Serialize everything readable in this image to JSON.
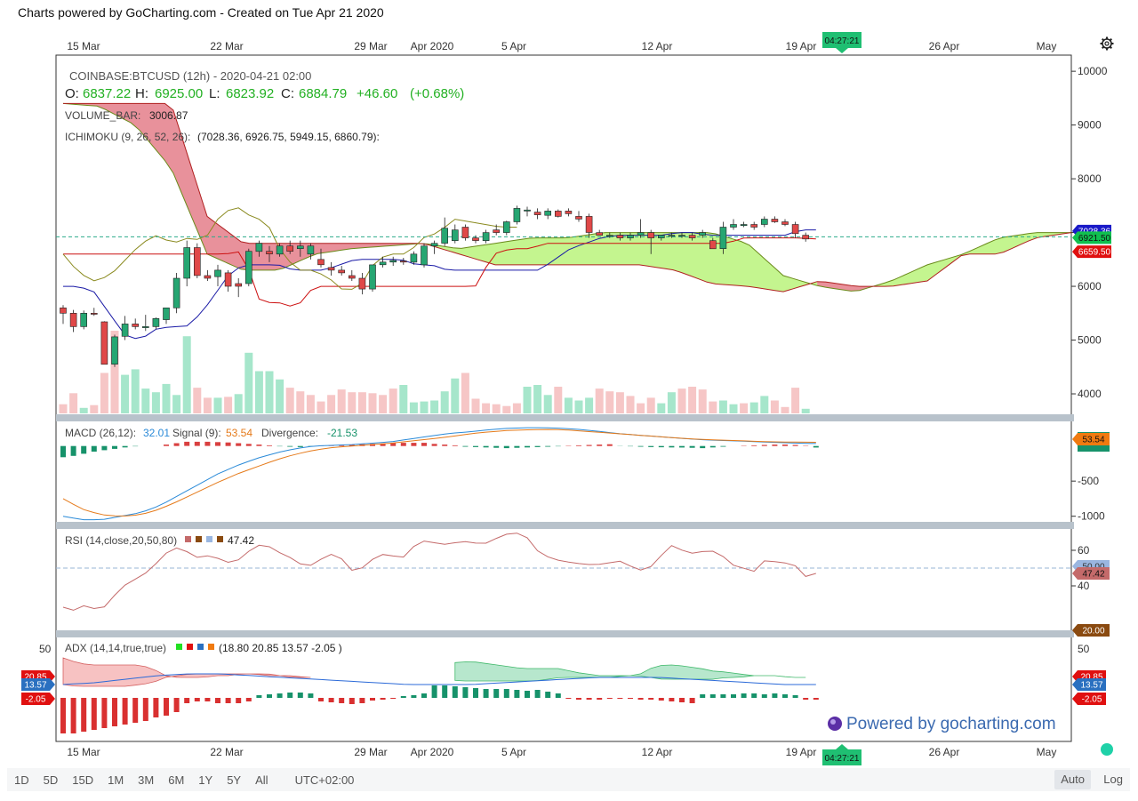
{
  "header": {
    "title": "Charts powered by GoCharting.com - Created on Tue Apr 21 2020"
  },
  "watermark": "Powered by gocharting.com",
  "time_badge": "04:27:21",
  "symbol_line": "COINBASE:BTCUSD (12h) - 2020-04-21 02:00",
  "ohlc": {
    "o_label": "O:",
    "o": "6837.22",
    "h_label": "H:",
    "h": "6925.00",
    "l_label": "L:",
    "l": "6823.92",
    "c_label": "C:",
    "c": "6884.79",
    "chg": "+46.60",
    "pct": "(+0.68%)"
  },
  "volume_label": "VOLUME_BAR:",
  "volume_value": "3006.87",
  "ichimoku_label": "ICHIMOKU (9, 26, 52, 26):",
  "ichimoku_values": "(7028.36, 6926.75, 5949.15, 6860.79):",
  "macd": {
    "label": "MACD (26,12):",
    "macd_value": "32.01",
    "signal_label": "Signal (9):",
    "signal_value": "53.54",
    "div_label": "Divergence:",
    "div_value": "-21.53"
  },
  "rsi": {
    "label": "RSI (14,close,20,50,80)",
    "value": "47.42"
  },
  "adx": {
    "label": "ADX (14,14,true,true)",
    "values": "(18.80 20.85 13.57 -2.05 )"
  },
  "bottom_bar": {
    "ranges": [
      "1D",
      "5D",
      "15D",
      "1M",
      "3M",
      "6M",
      "1Y",
      "5Y",
      "All"
    ],
    "timezone": "UTC+02:00",
    "auto": "Auto",
    "log": "Log"
  },
  "colors": {
    "up": "#26a672",
    "down": "#e04848",
    "cloud_bear": "#e8919b",
    "cloud_bull": "#c4f58f",
    "tenkan": "#1a1aa6",
    "kijun": "#cc1010"
  },
  "chart_data": [
    {
      "type": "candlestick",
      "title": "COINBASE:BTCUSD (12h)",
      "x_ticks": [
        "15 Mar",
        "22 Mar",
        "29 Mar",
        "Apr 2020",
        "5 Apr",
        "12 Apr",
        "19 Apr",
        "26 Apr",
        "May"
      ],
      "y_ticks": [
        10000,
        9000,
        8000,
        7000,
        6000,
        5000,
        4000
      ],
      "ylim": [
        3620,
        10300
      ],
      "price_labels": {
        "tenkan": "7028.36",
        "last": "6921.50",
        "kijun": "6659.50"
      },
      "candles": [
        [
          5600,
          5650,
          5300,
          5500
        ],
        [
          5500,
          5560,
          5150,
          5250
        ],
        [
          5250,
          5550,
          5200,
          5500
        ],
        [
          5500,
          5600,
          5450,
          5480
        ],
        [
          5340,
          5350,
          4600,
          4550
        ],
        [
          4550,
          5100,
          4500,
          5060
        ],
        [
          5070,
          5450,
          5000,
          5300
        ],
        [
          5300,
          5400,
          5200,
          5250
        ],
        [
          5230,
          5470,
          5170,
          5250
        ],
        [
          5250,
          5420,
          5200,
          5400
        ],
        [
          5380,
          5600,
          5300,
          5600
        ],
        [
          5600,
          6250,
          5500,
          6150
        ],
        [
          6150,
          6850,
          6000,
          6720
        ],
        [
          6720,
          6800,
          6150,
          6200
        ],
        [
          6200,
          6300,
          6100,
          6150
        ],
        [
          6180,
          6400,
          6000,
          6300
        ],
        [
          6250,
          6300,
          5900,
          6000
        ],
        [
          6050,
          6150,
          5800,
          6000
        ],
        [
          6050,
          6700,
          6000,
          6650
        ],
        [
          6650,
          6850,
          6550,
          6800
        ],
        [
          6650,
          6750,
          6450,
          6600
        ],
        [
          6600,
          6800,
          6550,
          6750
        ],
        [
          6750,
          6850,
          6600,
          6650
        ],
        [
          6700,
          6850,
          6550,
          6750
        ],
        [
          6600,
          6800,
          6500,
          6750
        ],
        [
          6500,
          6700,
          6350,
          6400
        ],
        [
          6350,
          6450,
          6200,
          6300
        ],
        [
          6300,
          6380,
          6200,
          6250
        ],
        [
          6200,
          6300,
          6100,
          6150
        ],
        [
          6150,
          6250,
          5850,
          5950
        ],
        [
          5950,
          6400,
          5900,
          6400
        ],
        [
          6400,
          6550,
          6350,
          6450
        ],
        [
          6450,
          6550,
          6380,
          6480
        ],
        [
          6470,
          6530,
          6400,
          6460
        ],
        [
          6450,
          6650,
          6400,
          6600
        ],
        [
          6400,
          6800,
          6350,
          6750
        ],
        [
          6750,
          6850,
          6600,
          6800
        ],
        [
          6800,
          7280,
          6750,
          7080
        ],
        [
          6850,
          7150,
          6800,
          7050
        ],
        [
          7100,
          7150,
          6850,
          6900
        ],
        [
          6900,
          6950,
          6800,
          6850
        ],
        [
          6850,
          7050,
          6800,
          7000
        ],
        [
          7050,
          7150,
          6950,
          7000
        ],
        [
          7000,
          7220,
          6950,
          7200
        ],
        [
          7200,
          7500,
          7150,
          7450
        ],
        [
          7400,
          7480,
          7300,
          7420
        ],
        [
          7380,
          7450,
          7250,
          7330
        ],
        [
          7320,
          7450,
          7250,
          7400
        ],
        [
          7400,
          7430,
          7280,
          7300
        ],
        [
          7400,
          7450,
          7300,
          7350
        ],
        [
          7300,
          7400,
          7200,
          7250
        ],
        [
          7300,
          7350,
          6900,
          7000
        ],
        [
          7000,
          7050,
          6950,
          6950
        ],
        [
          6950,
          7000,
          6900,
          6950
        ],
        [
          6950,
          7000,
          6850,
          6900
        ],
        [
          6900,
          7000,
          6850,
          6950
        ],
        [
          6950,
          7250,
          6900,
          7000
        ],
        [
          7000,
          7050,
          6600,
          6900
        ],
        [
          6900,
          6950,
          6850,
          6950
        ],
        [
          6950,
          7000,
          6900,
          6950
        ],
        [
          6950,
          7000,
          6900,
          6950
        ],
        [
          6950,
          7000,
          6850,
          6900
        ],
        [
          6950,
          7050,
          6900,
          7000
        ],
        [
          6850,
          6900,
          6700,
          6700
        ],
        [
          6700,
          7200,
          6600,
          7100
        ],
        [
          7100,
          7250,
          7050,
          7150
        ],
        [
          7150,
          7200,
          7100,
          7150
        ],
        [
          7150,
          7200,
          7050,
          7100
        ],
        [
          7150,
          7300,
          7100,
          7250
        ],
        [
          7250,
          7300,
          7180,
          7200
        ],
        [
          7200,
          7250,
          7120,
          7150
        ],
        [
          7150,
          7200,
          6900,
          6980
        ],
        [
          6950,
          7000,
          6830,
          6880
        ]
      ],
      "volume_bars": [
        [
          0.1,
          "down"
        ],
        [
          0.22,
          "down"
        ],
        [
          0.06,
          "up"
        ],
        [
          0.09,
          "down"
        ],
        [
          0.44,
          "down"
        ],
        [
          0.9,
          "down"
        ],
        [
          0.42,
          "up"
        ],
        [
          0.48,
          "up"
        ],
        [
          0.27,
          "up"
        ],
        [
          0.23,
          "up"
        ],
        [
          0.32,
          "up"
        ],
        [
          0.2,
          "up"
        ],
        [
          0.84,
          "up"
        ],
        [
          0.28,
          "down"
        ],
        [
          0.17,
          "down"
        ],
        [
          0.17,
          "up"
        ],
        [
          0.18,
          "down"
        ],
        [
          0.21,
          "up"
        ],
        [
          0.66,
          "up"
        ],
        [
          0.46,
          "up"
        ],
        [
          0.46,
          "up"
        ],
        [
          0.37,
          "up"
        ],
        [
          0.28,
          "down"
        ],
        [
          0.24,
          "down"
        ],
        [
          0.2,
          "down"
        ],
        [
          0.13,
          "down"
        ],
        [
          0.2,
          "down"
        ],
        [
          0.26,
          "down"
        ],
        [
          0.23,
          "down"
        ],
        [
          0.23,
          "down"
        ],
        [
          0.22,
          "down"
        ],
        [
          0.2,
          "down"
        ],
        [
          0.27,
          "down"
        ],
        [
          0.31,
          "up"
        ],
        [
          0.12,
          "up"
        ],
        [
          0.13,
          "up"
        ],
        [
          0.14,
          "up"
        ],
        [
          0.24,
          "up"
        ],
        [
          0.38,
          "up"
        ],
        [
          0.44,
          "down"
        ],
        [
          0.16,
          "down"
        ],
        [
          0.11,
          "down"
        ],
        [
          0.1,
          "down"
        ],
        [
          0.08,
          "down"
        ],
        [
          0.11,
          "down"
        ],
        [
          0.29,
          "up"
        ],
        [
          0.31,
          "up"
        ],
        [
          0.2,
          "up"
        ],
        [
          0.29,
          "down"
        ],
        [
          0.17,
          "up"
        ],
        [
          0.14,
          "up"
        ],
        [
          0.17,
          "up"
        ],
        [
          0.27,
          "down"
        ],
        [
          0.24,
          "down"
        ],
        [
          0.23,
          "down"
        ],
        [
          0.19,
          "down"
        ],
        [
          0.11,
          "down"
        ],
        [
          0.17,
          "down"
        ],
        [
          0.11,
          "up"
        ],
        [
          0.23,
          "up"
        ],
        [
          0.27,
          "down"
        ],
        [
          0.29,
          "down"
        ],
        [
          0.26,
          "down"
        ],
        [
          0.13,
          "down"
        ],
        [
          0.14,
          "up"
        ],
        [
          0.1,
          "up"
        ],
        [
          0.11,
          "down"
        ],
        [
          0.12,
          "up"
        ],
        [
          0.19,
          "up"
        ],
        [
          0.14,
          "down"
        ],
        [
          0.07,
          "down"
        ],
        [
          0.28,
          "down"
        ],
        [
          0.05,
          "up"
        ]
      ]
    },
    {
      "type": "line",
      "title": "MACD (26,12)",
      "y_ticks": [
        -500,
        -1000
      ],
      "ylim": [
        -1080,
        350
      ],
      "price_label": "53.54"
    },
    {
      "type": "line",
      "title": "RSI (14,close,20,50,80)",
      "y_ticks": [
        60,
        40
      ],
      "ylim": [
        15,
        72
      ],
      "price_labels": {
        "mid": "50.00",
        "value": "47.42",
        "lower": "20.00"
      }
    },
    {
      "type": "area",
      "title": "ADX (14,14,true,true)",
      "y_ticks": [
        50
      ],
      "price_labels": {
        "a": "20.85",
        "b": "13.57",
        "c": "-2.05"
      }
    }
  ]
}
